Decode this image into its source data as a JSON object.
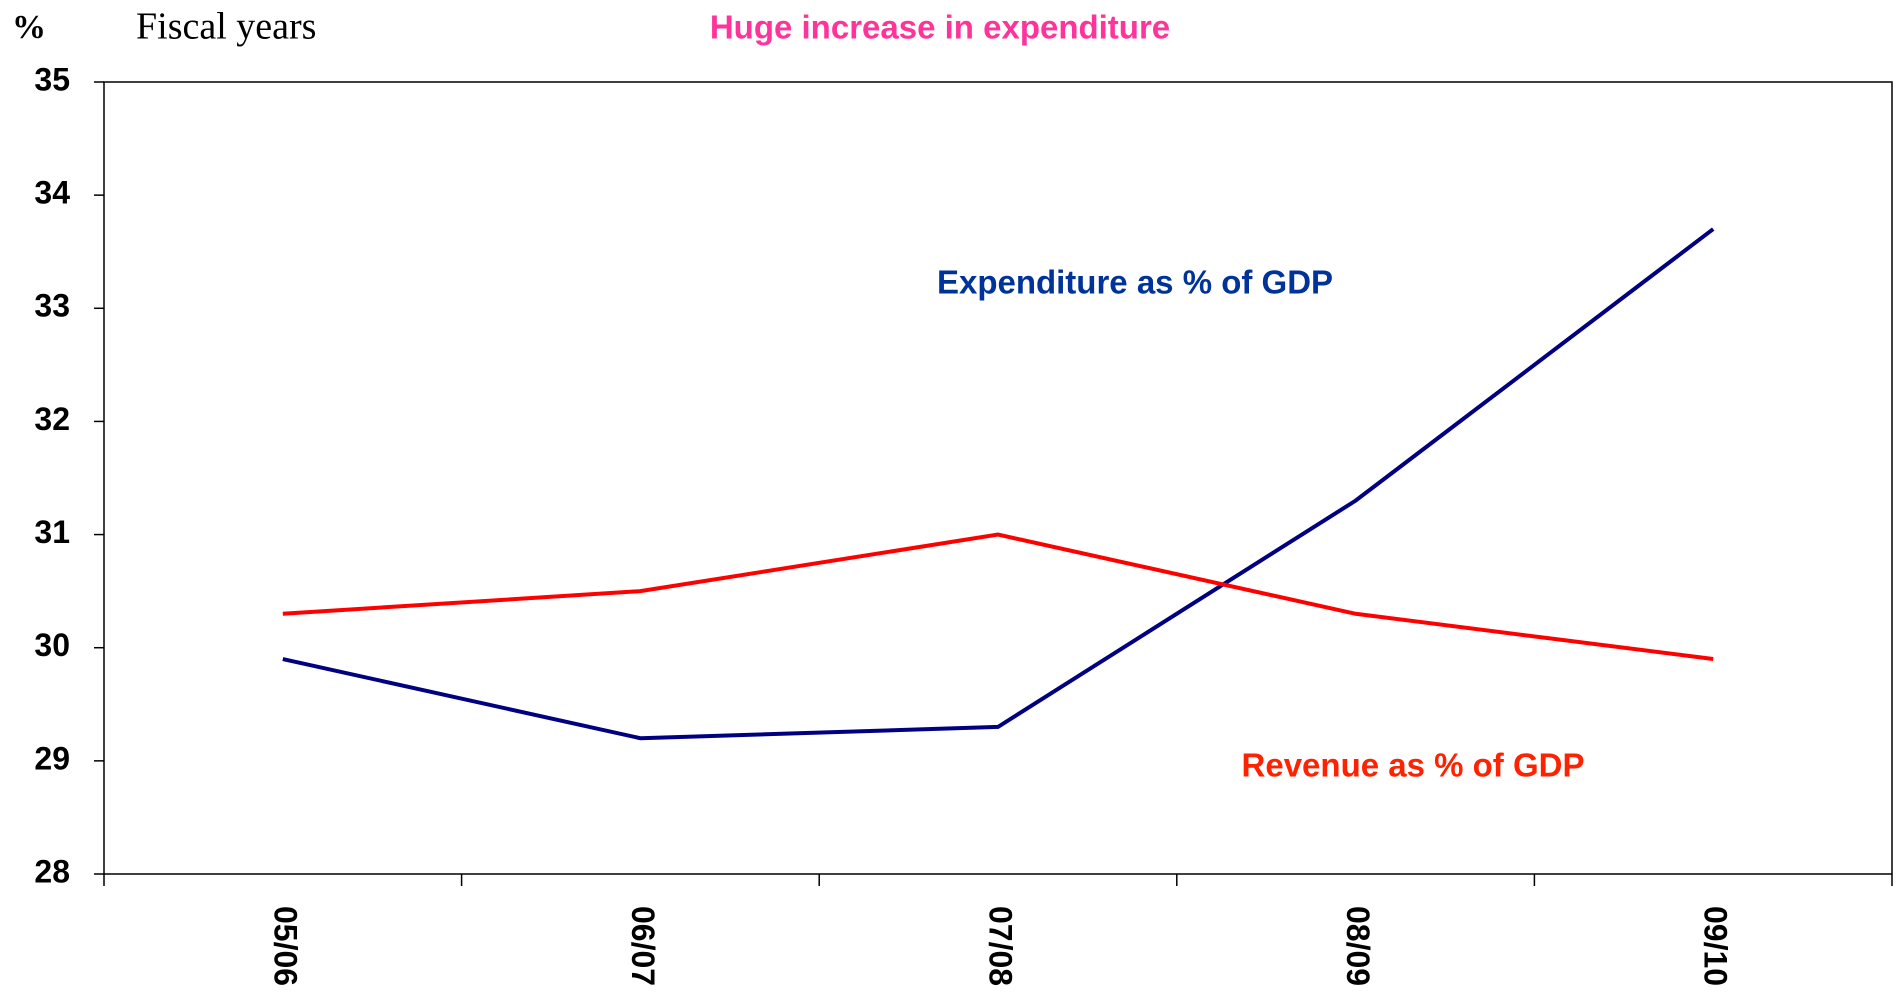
{
  "chart_data": {
    "type": "line",
    "title": "Huge increase in expenditure",
    "y_axis_label": "%",
    "x_axis_label": "Fiscal years",
    "categories": [
      "05/06",
      "06/07",
      "07/08",
      "08/09",
      "09/10"
    ],
    "series": [
      {
        "name": "Expenditure as % of GDP",
        "color": "#000080",
        "values": [
          29.9,
          29.2,
          29.3,
          31.3,
          33.7
        ]
      },
      {
        "name": "Revenue as % of GDP",
        "color": "#ff0000",
        "values": [
          30.3,
          30.5,
          31.0,
          30.3,
          29.9
        ]
      }
    ],
    "ylim": [
      28,
      35
    ],
    "yticks": [
      28,
      29,
      30,
      31,
      32,
      33,
      34,
      35
    ],
    "grid": false
  }
}
